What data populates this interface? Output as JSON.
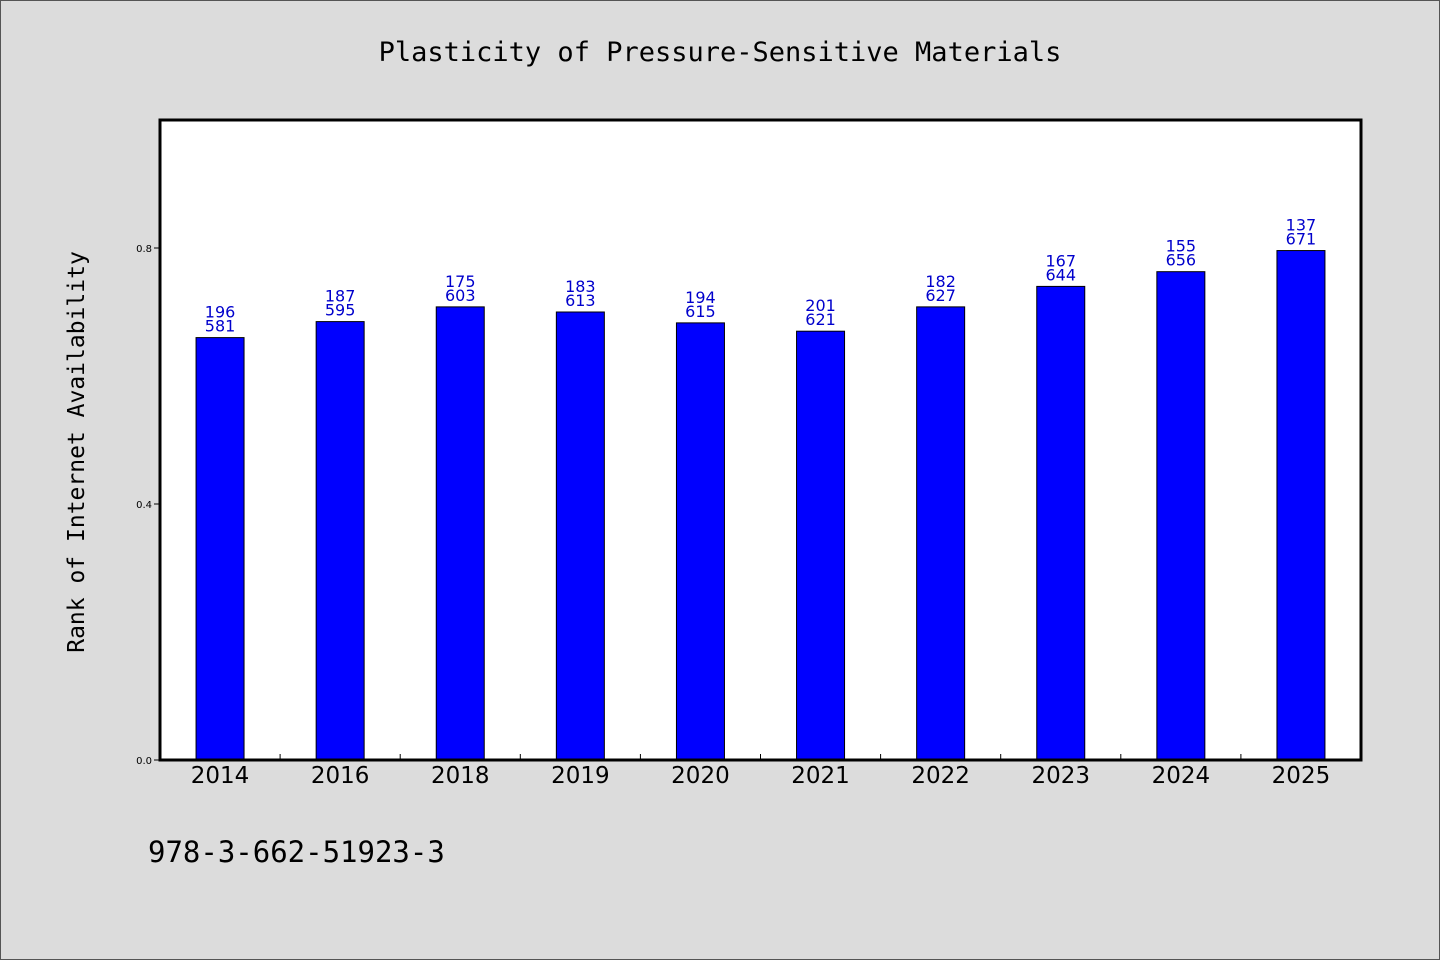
{
  "chart_data": {
    "type": "bar",
    "title": "Plasticity of Pressure-Sensitive Materials",
    "xlabel": "",
    "ylabel": "Rank of Internet Availability",
    "categories": [
      "2014",
      "2016",
      "2018",
      "2019",
      "2020",
      "2021",
      "2022",
      "2023",
      "2024",
      "2025"
    ],
    "values": [
      0.66,
      0.685,
      0.708,
      0.7,
      0.683,
      0.67,
      0.708,
      0.74,
      0.763,
      0.796
    ],
    "labels_top": [
      "196",
      "187",
      "175",
      "183",
      "194",
      "201",
      "182",
      "167",
      "155",
      "137"
    ],
    "labels_bottom": [
      "581",
      "595",
      "603",
      "613",
      "615",
      "621",
      "627",
      "644",
      "656",
      "671"
    ],
    "yticks": [
      "0.0",
      "0.4",
      "0.8"
    ],
    "ylim": [
      0,
      1.0
    ],
    "grid": false,
    "bar_color": "#0000ff",
    "label_color": "#0000cc"
  },
  "footer": {
    "isbn": "978-3-662-51923-3"
  }
}
